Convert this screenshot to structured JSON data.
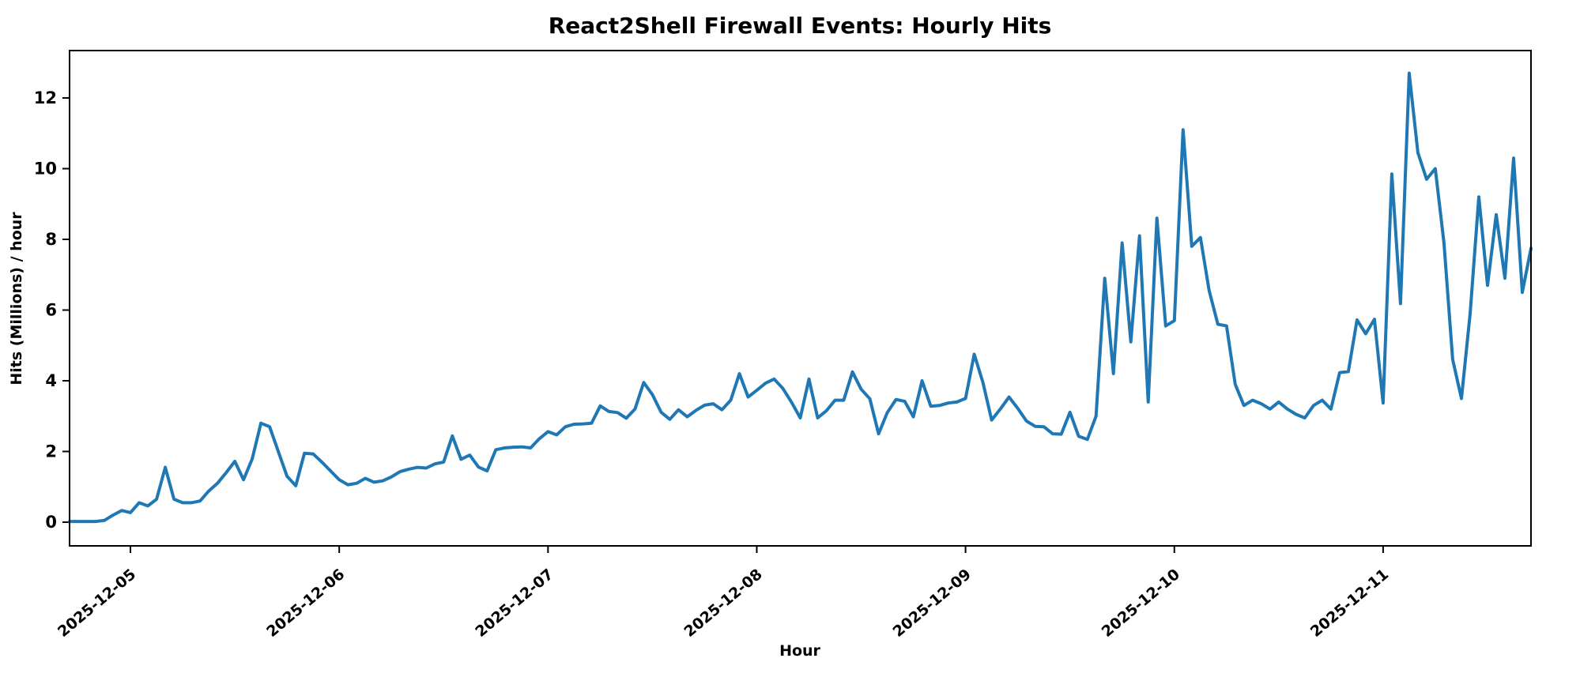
{
  "chart_data": {
    "type": "line",
    "title": "React2Shell Firewall Events: Hourly Hits",
    "xlabel": "Hour",
    "ylabel": "Hits (Millions) / hour",
    "legend": null,
    "grid": false,
    "background_color": "#ffffff",
    "line_color": "#1f77b4",
    "spine_color": "#000000",
    "ylim": [
      -0.67,
      13.34
    ],
    "yticks": [
      0,
      2,
      4,
      6,
      8,
      10,
      12
    ],
    "x_unit": "hours",
    "x_start": "2025-12-04 17:00",
    "x_end": "2025-12-11 17:00",
    "xtick_indices": [
      7,
      31,
      55,
      79,
      103,
      127,
      151
    ],
    "xtick_labels": [
      "2025-12-05",
      "2025-12-06",
      "2025-12-07",
      "2025-12-08",
      "2025-12-09",
      "2025-12-10",
      "2025-12-11"
    ],
    "values": [
      0.02,
      0.02,
      0.02,
      0.02,
      0.05,
      0.2,
      0.33,
      0.27,
      0.55,
      0.46,
      0.65,
      1.55,
      0.65,
      0.55,
      0.55,
      0.6,
      0.88,
      1.1,
      1.4,
      1.72,
      1.2,
      1.79,
      2.8,
      2.7,
      2.0,
      1.3,
      1.03,
      1.95,
      1.93,
      1.7,
      1.45,
      1.2,
      1.06,
      1.1,
      1.24,
      1.13,
      1.17,
      1.28,
      1.43,
      1.5,
      1.55,
      1.53,
      1.65,
      1.7,
      2.44,
      1.78,
      1.9,
      1.56,
      1.45,
      2.05,
      2.1,
      2.12,
      2.13,
      2.1,
      2.36,
      2.56,
      2.47,
      2.7,
      2.77,
      2.78,
      2.8,
      3.29,
      3.13,
      3.1,
      2.94,
      3.2,
      3.95,
      3.61,
      3.11,
      2.91,
      3.18,
      2.98,
      3.16,
      3.31,
      3.35,
      3.18,
      3.45,
      4.2,
      3.54,
      3.73,
      3.93,
      4.05,
      3.78,
      3.39,
      2.95,
      4.05,
      2.95,
      3.15,
      3.45,
      3.45,
      4.25,
      3.76,
      3.49,
      2.5,
      3.1,
      3.47,
      3.42,
      2.98,
      4.0,
      3.28,
      3.3,
      3.37,
      3.4,
      3.5,
      4.75,
      3.95,
      2.89,
      3.2,
      3.54,
      3.22,
      2.86,
      2.71,
      2.7,
      2.5,
      2.49,
      3.11,
      2.43,
      2.34,
      3.0,
      6.9,
      4.2,
      7.9,
      5.1,
      8.1,
      3.4,
      8.6,
      5.55,
      5.7,
      11.1,
      7.8,
      8.05,
      6.55,
      5.6,
      5.55,
      3.9,
      3.3,
      3.45,
      3.35,
      3.2,
      3.4,
      3.2,
      3.05,
      2.95,
      3.3,
      3.45,
      3.2,
      4.23,
      4.26,
      5.72,
      5.33,
      5.74,
      3.37,
      9.85,
      6.18,
      12.7,
      10.45,
      9.7,
      10.0,
      7.9,
      4.6,
      3.5,
      5.9,
      9.2,
      6.7,
      8.7,
      6.9,
      10.3,
      6.5,
      7.75
    ]
  }
}
